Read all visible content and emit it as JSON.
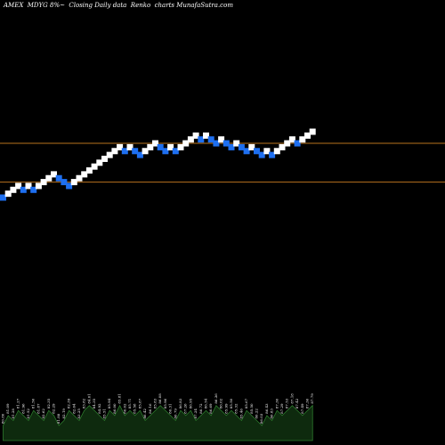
{
  "title": "AMEX  MDYG 8%~  Closing Daily data  Renko  charts MunafaSutra.com",
  "colors": {
    "background": "#000000",
    "up_brick": "#ffffff",
    "down_brick": "#1e6ff0",
    "level_line": "#b8731e",
    "volume_fill": "#0e2a0e",
    "volume_line": "#2e7d2e",
    "volume_label": "#ffffff"
  },
  "chart_data": {
    "type": "renko",
    "price_levels": [
      86.5,
      82.5
    ],
    "bricks": [
      {
        "dir": "down",
        "level": 80.9
      },
      {
        "dir": "up",
        "level": 81.3
      },
      {
        "dir": "up",
        "level": 81.7
      },
      {
        "dir": "up",
        "level": 82.1
      },
      {
        "dir": "down",
        "level": 81.7
      },
      {
        "dir": "up",
        "level": 82.1
      },
      {
        "dir": "down",
        "level": 81.7
      },
      {
        "dir": "up",
        "level": 82.1
      },
      {
        "dir": "up",
        "level": 82.5
      },
      {
        "dir": "up",
        "level": 82.9
      },
      {
        "dir": "up",
        "level": 83.3
      },
      {
        "dir": "down",
        "level": 82.9
      },
      {
        "dir": "down",
        "level": 82.5
      },
      {
        "dir": "down",
        "level": 82.1
      },
      {
        "dir": "up",
        "level": 82.5
      },
      {
        "dir": "up",
        "level": 82.9
      },
      {
        "dir": "up",
        "level": 83.3
      },
      {
        "dir": "up",
        "level": 83.7
      },
      {
        "dir": "up",
        "level": 84.1
      },
      {
        "dir": "up",
        "level": 84.5
      },
      {
        "dir": "up",
        "level": 84.9
      },
      {
        "dir": "up",
        "level": 85.3
      },
      {
        "dir": "up",
        "level": 85.7
      },
      {
        "dir": "up",
        "level": 86.1
      },
      {
        "dir": "down",
        "level": 85.7
      },
      {
        "dir": "up",
        "level": 86.1
      },
      {
        "dir": "down",
        "level": 85.7
      },
      {
        "dir": "down",
        "level": 85.3
      },
      {
        "dir": "up",
        "level": 85.7
      },
      {
        "dir": "up",
        "level": 86.1
      },
      {
        "dir": "up",
        "level": 86.5
      },
      {
        "dir": "down",
        "level": 86.1
      },
      {
        "dir": "down",
        "level": 85.7
      },
      {
        "dir": "up",
        "level": 86.1
      },
      {
        "dir": "down",
        "level": 85.7
      },
      {
        "dir": "up",
        "level": 86.1
      },
      {
        "dir": "up",
        "level": 86.5
      },
      {
        "dir": "up",
        "level": 86.9
      },
      {
        "dir": "up",
        "level": 87.3
      },
      {
        "dir": "down",
        "level": 86.9
      },
      {
        "dir": "up",
        "level": 87.3
      },
      {
        "dir": "down",
        "level": 86.9
      },
      {
        "dir": "down",
        "level": 86.5
      },
      {
        "dir": "up",
        "level": 86.9
      },
      {
        "dir": "down",
        "level": 86.5
      },
      {
        "dir": "down",
        "level": 86.1
      },
      {
        "dir": "up",
        "level": 86.5
      },
      {
        "dir": "down",
        "level": 86.1
      },
      {
        "dir": "down",
        "level": 85.7
      },
      {
        "dir": "up",
        "level": 86.1
      },
      {
        "dir": "down",
        "level": 85.7
      },
      {
        "dir": "down",
        "level": 85.3
      },
      {
        "dir": "up",
        "level": 85.7
      },
      {
        "dir": "down",
        "level": 85.3
      },
      {
        "dir": "up",
        "level": 85.7
      },
      {
        "dir": "up",
        "level": 86.1
      },
      {
        "dir": "up",
        "level": 86.5
      },
      {
        "dir": "up",
        "level": 86.9
      },
      {
        "dir": "down",
        "level": 86.5
      },
      {
        "dir": "up",
        "level": 86.9
      },
      {
        "dir": "up",
        "level": 87.3
      },
      {
        "dir": "up",
        "level": 87.7
      }
    ],
    "volume": [
      3,
      5,
      4,
      6,
      5,
      4,
      6,
      5,
      4,
      6,
      5,
      3,
      4,
      6,
      5,
      4,
      6,
      7,
      6,
      5,
      4,
      6,
      5,
      7,
      5,
      6,
      5,
      6,
      4,
      5,
      6,
      7,
      6,
      5,
      4,
      6,
      5,
      6,
      4,
      5,
      6,
      5,
      7,
      6,
      5,
      6,
      5,
      4,
      6,
      5,
      4,
      3,
      5,
      4,
      6,
      5,
      6,
      7,
      6,
      5,
      6,
      7
    ],
    "volume_labels": [
      "80.80",
      "81.09",
      "81.28",
      "81.27",
      "81.96",
      "81.52",
      "81.56",
      "81.87",
      "82.62",
      "82.35",
      "82.29",
      "81.88",
      "82.19",
      "82.39",
      "82.64",
      "83.25",
      "83.82",
      "84.01",
      "84.35",
      "84.92",
      "85.51",
      "85.94",
      "86.00",
      "85.81",
      "86.02",
      "85.71",
      "85.58",
      "85.87",
      "86.42",
      "86.16",
      "85.83",
      "86.08",
      "85.96",
      "86.31",
      "86.79",
      "86.83",
      "87.26",
      "86.95",
      "87.24",
      "86.72",
      "86.54",
      "86.69",
      "86.36",
      "86.02",
      "85.99",
      "85.50",
      "85.32",
      "85.46",
      "85.67",
      "85.50",
      "86.22",
      "86.03",
      "86.43",
      "86.83",
      "87.30",
      "87.29",
      "87.53",
      "87.18",
      "87.42",
      "87.49",
      "87.36",
      "87.79"
    ]
  }
}
